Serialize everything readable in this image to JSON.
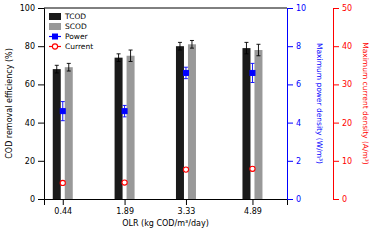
{
  "chart_data": {
    "type": "bar",
    "x": [
      0.44,
      1.89,
      3.33,
      4.89
    ],
    "xlim": [
      0.0,
      5.7
    ],
    "xticks": [
      0.44,
      1.89,
      3.33,
      4.89
    ],
    "xlabel": "OLR (kg COD/m³/day)",
    "ylabel": "COD removal efficiency (%)",
    "y2label": "Maximum power density (W/m³)",
    "y3label": "Maximum current density (A/m³)",
    "ylim": [
      0,
      100
    ],
    "yticks": [
      0,
      20,
      40,
      60,
      80,
      100
    ],
    "y2lim": [
      0,
      10
    ],
    "y2ticks": [
      0,
      2,
      4,
      6,
      8,
      10
    ],
    "y3lim": [
      0,
      50
    ],
    "y3ticks": [
      0,
      10,
      20,
      30,
      40,
      50
    ],
    "grid": false,
    "legend": "upper left",
    "series": [
      {
        "name": "TCOD",
        "type": "bar",
        "color": "#1a1a1a",
        "values": [
          68,
          74,
          80,
          79
        ],
        "errors": [
          2,
          2,
          2,
          3
        ]
      },
      {
        "name": "SCOD",
        "type": "bar",
        "color": "#999999",
        "values": [
          69,
          75,
          81,
          78
        ],
        "errors": [
          2,
          3,
          2,
          3
        ]
      },
      {
        "name": "Power",
        "type": "scatter",
        "axis": "y2",
        "marker": "square",
        "color": "#0000ff",
        "values": [
          4.6,
          4.6,
          6.6,
          6.6
        ],
        "errors": [
          0.5,
          0.3,
          0.3,
          0.5
        ]
      },
      {
        "name": "Current",
        "type": "scatter",
        "axis": "y3",
        "marker": "open-circle",
        "color": "#ff0000",
        "values": [
          4.2,
          4.3,
          7.7,
          7.9
        ],
        "errors": [
          0.3,
          0.3,
          0.5,
          0.6
        ]
      }
    ]
  }
}
